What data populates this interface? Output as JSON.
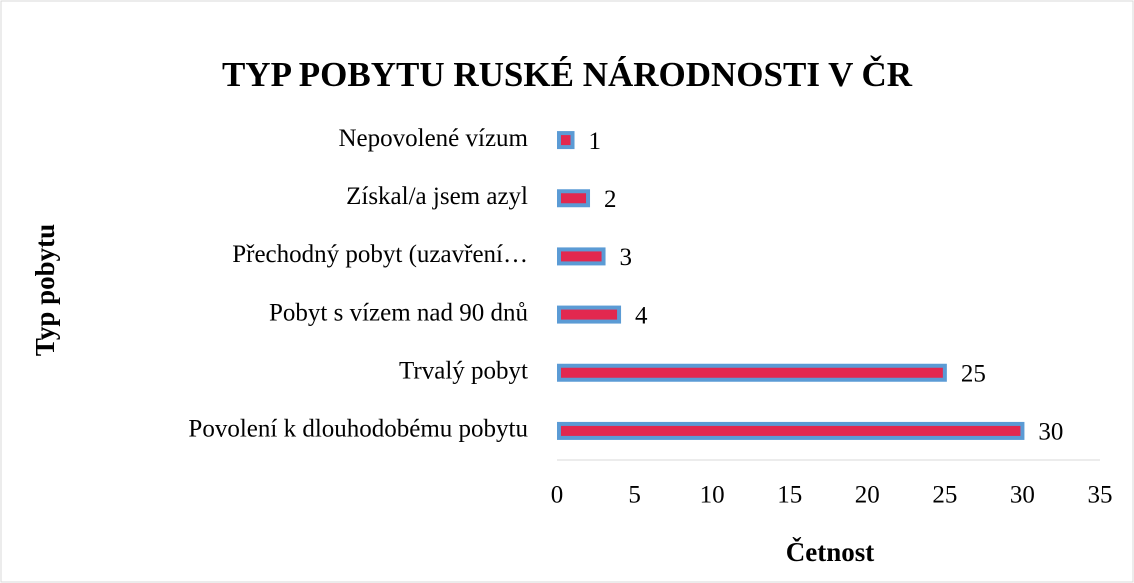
{
  "chart_data": {
    "type": "barh",
    "title": "TYP POBYTU RUSKÉ NÁRODNOSTI V ČR",
    "xlabel": "Četnost",
    "ylabel": "Typ pobytu",
    "categories": [
      "Nepovolené vízum",
      "Získal/a jsem azyl",
      "Přechodný pobyt (uzavření…",
      "Pobyt s vízem nad 90 dnů",
      "Trvalý pobyt",
      "Povolení k dlouhodobému pobytu"
    ],
    "values": [
      1,
      2,
      3,
      4,
      25,
      30
    ],
    "color": "#e2284f",
    "edgecolor": "#5b9bd5",
    "xlim": [
      0,
      35
    ],
    "xticks": [
      0,
      5,
      10,
      15,
      20,
      25,
      30,
      35
    ]
  }
}
